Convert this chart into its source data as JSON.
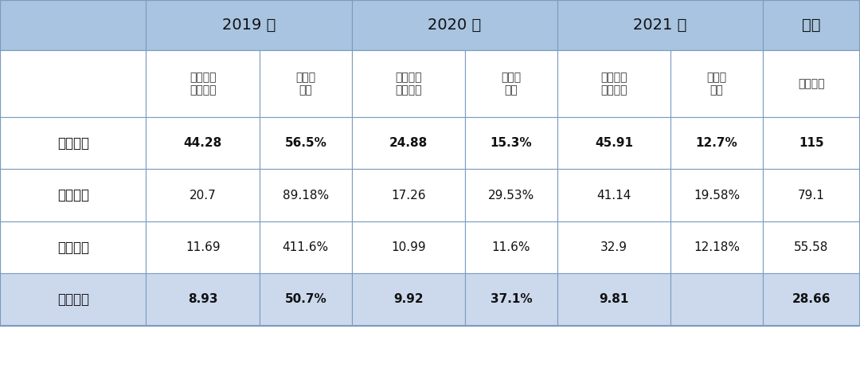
{
  "header_row1": [
    "",
    "2019年",
    "2020年",
    "2021年",
    "合计"
  ],
  "header_row2": [
    "",
    "研发开支（亿元）",
    "占同期收入",
    "研发开支（亿元）",
    "占同期收入",
    "研发开支（亿元）",
    "占同期收入",
    "（亿元）"
  ],
  "rows": [
    {
      "公司": "蒔来汽车",
      "r19": "44.28",
      "p19": "56.5%",
      "r20": "24.88",
      "p20": "15.3%",
      "r21": "45.91",
      "p21": "12.7%",
      "total": "115",
      "bold": true
    },
    {
      "公司": "小鹏汽车",
      "r19": "20.7",
      "p19": "89.18%",
      "r20": "17.26",
      "p20": "29.53%",
      "r21": "41.14",
      "p21": "19.58%",
      "total": "79.1",
      "bold": false
    },
    {
      "公司": "理想汽车",
      "r19": "11.69",
      "p19": "411.6%",
      "r20": "10.99",
      "p20": "11.6%",
      "r21": "32.9",
      "p21": "12.18%",
      "total": "55.58",
      "bold": false
    },
    {
      "公司": "威马汽车",
      "r19": "8.93",
      "p19": "50.7%",
      "r20": "9.92",
      "p20": "37.1%",
      "r21": "9.81",
      "p21": "",
      "total": "28.66",
      "bold": true
    }
  ],
  "header_bg": "#a8c4e0",
  "subheader_bg": "#ffffff",
  "odd_row_bg": "#ffffff",
  "highlighted_row_bg": "#ccd9ed",
  "border_color": "#7a9cbf",
  "text_color": "#222222",
  "bold_color": "#111111"
}
